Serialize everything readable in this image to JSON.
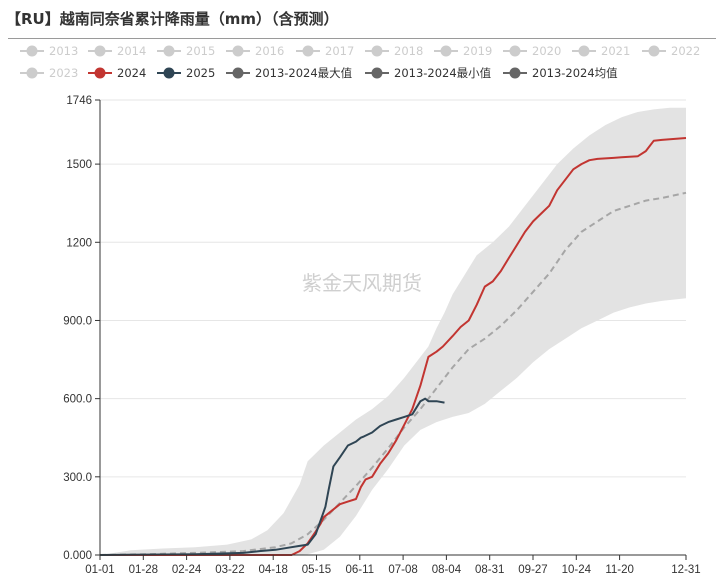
{
  "title": "【RU】越南同奈省累计降雨量（mm）（含预测）",
  "watermark": "紫金天风期货",
  "colors": {
    "inactive": "#cccccc",
    "s2024": "#c23531",
    "s2025": "#2f4554",
    "band": "#e3e3e3",
    "mean": "#a6a6a6",
    "legend_gray": "#666666"
  },
  "legend": [
    {
      "name": "2013",
      "active": false
    },
    {
      "name": "2014",
      "active": false
    },
    {
      "name": "2015",
      "active": false
    },
    {
      "name": "2016",
      "active": false
    },
    {
      "name": "2017",
      "active": false
    },
    {
      "name": "2018",
      "active": false
    },
    {
      "name": "2019",
      "active": false
    },
    {
      "name": "2020",
      "active": false
    },
    {
      "name": "2021",
      "active": false
    },
    {
      "name": "2022",
      "active": false
    },
    {
      "name": "2023",
      "active": false
    },
    {
      "name": "2024",
      "active": true,
      "color": "#c23531"
    },
    {
      "name": "2025",
      "active": true,
      "color": "#2f4554"
    },
    {
      "name": "2013-2024最大值",
      "active": true,
      "color": "#666666"
    },
    {
      "name": "2013-2024最小值",
      "active": true,
      "color": "#666666"
    },
    {
      "name": "2013-2024均值",
      "active": true,
      "color": "#666666"
    }
  ],
  "chart_data": {
    "type": "line",
    "title": "【RU】越南同奈省累计降雨量（mm）（含预测）",
    "xlabel": "",
    "ylabel": "",
    "x_tick_labels": [
      "01-01",
      "01-28",
      "02-24",
      "03-22",
      "04-18",
      "05-15",
      "06-11",
      "07-08",
      "08-04",
      "08-31",
      "09-27",
      "10-24",
      "11-20",
      "12-31"
    ],
    "y_tick_labels": [
      "0.000",
      "300.0",
      "600.0",
      "900.0",
      "1200",
      "1500",
      "1746"
    ],
    "ylim": [
      0,
      1746
    ],
    "xlim_day_of_year": [
      1,
      365
    ],
    "grid": true,
    "legend_position": "top",
    "series": [
      {
        "name": "2013-2024最大值",
        "style": "band-upper",
        "x": [
          1,
          20,
          40,
          60,
          80,
          95,
          105,
          115,
          125,
          130,
          140,
          150,
          160,
          170,
          180,
          190,
          200,
          205,
          210,
          215,
          220,
          228,
          235,
          245,
          255,
          265,
          275,
          285,
          295,
          305,
          315,
          325,
          335,
          345,
          355,
          365
        ],
        "y": [
          0,
          18,
          25,
          30,
          40,
          60,
          95,
          160,
          270,
          360,
          420,
          470,
          520,
          560,
          610,
          680,
          760,
          800,
          870,
          930,
          1000,
          1080,
          1150,
          1200,
          1260,
          1340,
          1420,
          1500,
          1560,
          1610,
          1650,
          1680,
          1700,
          1710,
          1716,
          1716
        ]
      },
      {
        "name": "2013-2024最小值",
        "style": "band-lower",
        "x": [
          1,
          60,
          100,
          120,
          130,
          140,
          150,
          160,
          170,
          180,
          190,
          200,
          210,
          215,
          220,
          230,
          240,
          250,
          260,
          270,
          280,
          290,
          300,
          310,
          320,
          330,
          340,
          350,
          365
        ],
        "y": [
          0,
          0,
          0,
          0,
          3,
          20,
          70,
          150,
          250,
          330,
          420,
          480,
          510,
          520,
          530,
          545,
          580,
          630,
          680,
          740,
          790,
          830,
          870,
          900,
          930,
          950,
          965,
          975,
          985
        ]
      },
      {
        "name": "2013-2024均值",
        "style": "dashed",
        "x": [
          1,
          30,
          60,
          90,
          110,
          120,
          130,
          140,
          150,
          160,
          170,
          180,
          190,
          200,
          210,
          220,
          230,
          240,
          250,
          260,
          270,
          280,
          290,
          300,
          310,
          320,
          330,
          340,
          350,
          365
        ],
        "y": [
          0,
          3,
          8,
          15,
          30,
          45,
          80,
          135,
          200,
          265,
          335,
          410,
          490,
          560,
          640,
          720,
          790,
          830,
          880,
          940,
          1010,
          1080,
          1170,
          1240,
          1280,
          1320,
          1340,
          1360,
          1370,
          1390
        ]
      },
      {
        "name": "2024",
        "style": "line",
        "x": [
          1,
          100,
          120,
          125,
          130,
          135,
          138,
          140,
          145,
          150,
          155,
          160,
          163,
          166,
          170,
          175,
          180,
          185,
          190,
          195,
          200,
          205,
          210,
          214,
          220,
          225,
          230,
          235,
          240,
          245,
          250,
          255,
          260,
          265,
          270,
          275,
          280,
          285,
          290,
          295,
          300,
          305,
          310,
          315,
          320,
          325,
          330,
          335,
          340,
          345,
          350,
          355,
          360,
          365
        ],
        "y": [
          0,
          0,
          0,
          15,
          45,
          90,
          120,
          145,
          170,
          195,
          205,
          215,
          260,
          290,
          300,
          350,
          390,
          440,
          500,
          560,
          650,
          760,
          780,
          800,
          840,
          875,
          900,
          960,
          1030,
          1050,
          1090,
          1140,
          1190,
          1240,
          1280,
          1310,
          1340,
          1400,
          1440,
          1480,
          1500,
          1515,
          1520,
          1522,
          1524,
          1526,
          1528,
          1530,
          1550,
          1590,
          1593,
          1595,
          1598,
          1600
        ]
      },
      {
        "name": "2025",
        "style": "line",
        "x": [
          1,
          60,
          90,
          100,
          110,
          118,
          125,
          130,
          135,
          139,
          141,
          143,
          146,
          150,
          155,
          160,
          163,
          165,
          170,
          175,
          180,
          185,
          190,
          195,
          200,
          203,
          205,
          210,
          215
        ],
        "y": [
          0,
          3,
          8,
          15,
          20,
          28,
          35,
          40,
          80,
          150,
          185,
          250,
          340,
          375,
          420,
          435,
          450,
          455,
          470,
          495,
          510,
          520,
          530,
          540,
          590,
          600,
          590,
          590,
          585
        ]
      }
    ]
  }
}
